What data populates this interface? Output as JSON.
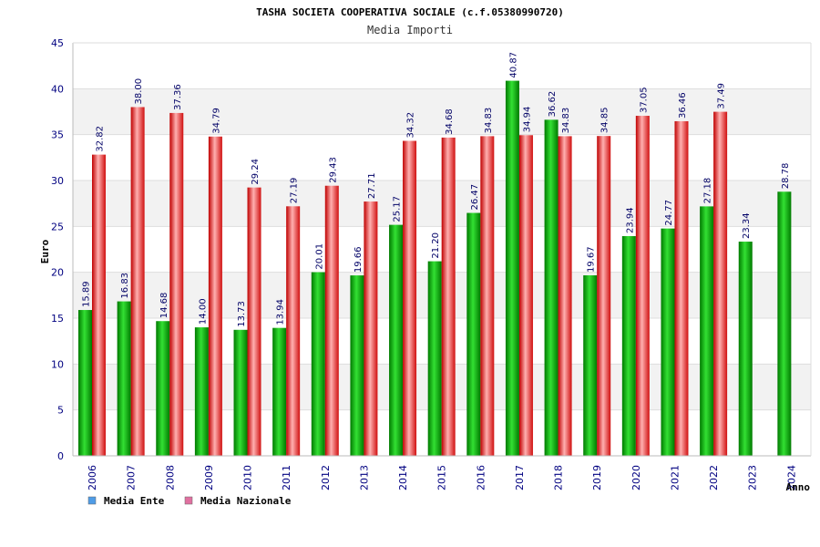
{
  "chart_data": {
    "type": "bar",
    "title": "TASHA SOCIETA COOPERATIVA SOCIALE (c.f.05380990720)",
    "subtitle": "Media Importi",
    "xlabel": "Anno",
    "ylabel": "Euro",
    "ylim": [
      0,
      45
    ],
    "yticks": [
      0,
      5,
      10,
      15,
      20,
      25,
      30,
      35,
      40,
      45
    ],
    "grid": true,
    "legend_position": "bottom-left",
    "categories": [
      "2006",
      "2007",
      "2008",
      "2009",
      "2010",
      "2011",
      "2012",
      "2013",
      "2014",
      "2015",
      "2016",
      "2017",
      "2018",
      "2019",
      "2020",
      "2021",
      "2022",
      "2023",
      "2024"
    ],
    "series": [
      {
        "name": "Media Ente",
        "color": "#00b000",
        "legend_color": "#4f9ce6",
        "values": [
          15.89,
          16.83,
          14.68,
          14.0,
          13.73,
          13.94,
          20.01,
          19.66,
          25.17,
          21.2,
          26.47,
          40.87,
          36.62,
          19.67,
          23.94,
          24.77,
          27.18,
          23.34,
          28.78
        ],
        "labels": [
          "15.89",
          "16.83",
          "14.68",
          "14.00",
          "13.73",
          "13.94",
          "20.01",
          "19.66",
          "25.17",
          "21.20",
          "26.47",
          "40.87",
          "36.62",
          "19.67",
          "23.94",
          "24.77",
          "27.18",
          "23.34",
          "28.78"
        ]
      },
      {
        "name": "Media Nazionale",
        "color": "#e82020",
        "legend_color": "#e070a0",
        "values": [
          32.82,
          38.0,
          37.36,
          34.79,
          29.24,
          27.19,
          29.43,
          27.71,
          34.32,
          34.68,
          34.83,
          34.94,
          34.83,
          34.85,
          37.05,
          36.46,
          37.49,
          null,
          null
        ],
        "labels": [
          "32.82",
          "38.00",
          "37.36",
          "34.79",
          "29.24",
          "27.19",
          "29.43",
          "27.71",
          "34.32",
          "34.68",
          "34.83",
          "34.94",
          "34.83",
          "34.85",
          "37.05",
          "36.46",
          "37.49",
          "",
          ""
        ]
      }
    ]
  }
}
